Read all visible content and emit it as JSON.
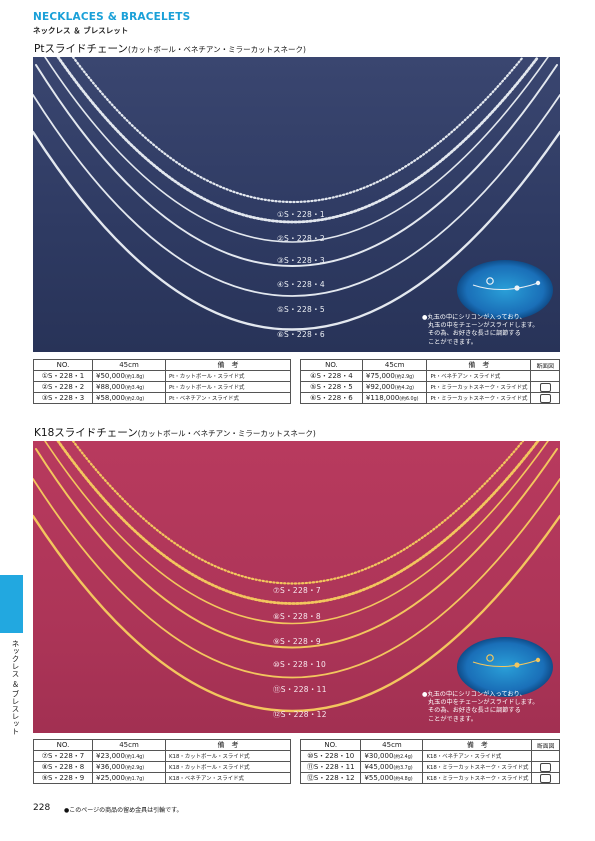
{
  "header": {
    "title": "NECKLACES & BRACELETS",
    "subtitle": "ネックレス ＆ ブレスレット"
  },
  "pt_section": {
    "title": "Ptスライドチェーン",
    "title_note": "(カットボール・ベネチアン・ミラーカットスネーク)",
    "chain_labels": [
      "①S・228・1",
      "②S・228・2",
      "③S・228・3",
      "④S・228・4",
      "⑤S・228・5",
      "⑥S・228・6"
    ],
    "callout": [
      "●丸玉の中にシリコンが入っており、",
      "丸玉の中をチェーンがスライドします。",
      "その為、お好きな長さに調節する",
      "ことができます。"
    ],
    "photo_bg": "#2f3a60",
    "chain_color": "#dfe4ec",
    "table": {
      "headers": {
        "no": "NO.",
        "length": "45cm",
        "note": "備　考",
        "diagram": "断面図"
      },
      "left_rows": [
        {
          "no": "①S・228・1",
          "price": "¥50,000",
          "weight": "(約1.8g)",
          "note": "Pt・カットボール・スライド式"
        },
        {
          "no": "②S・228・2",
          "price": "¥88,000",
          "weight": "(約3.4g)",
          "note": "Pt・カットボール・スライド式"
        },
        {
          "no": "③S・228・3",
          "price": "¥58,000",
          "weight": "(約2.0g)",
          "note": "Pt・ベネチアン・スライド式"
        }
      ],
      "right_rows": [
        {
          "no": "④S・228・4",
          "price": "¥75,000",
          "weight": "(約2.9g)",
          "note": "Pt・ベネチアン・スライド式",
          "diagram": false
        },
        {
          "no": "⑤S・228・5",
          "price": "¥92,000",
          "weight": "(約4.2g)",
          "note": "Pt・ミラーカットスネーク・スライド式",
          "diagram": true
        },
        {
          "no": "⑥S・228・6",
          "price": "¥118,000",
          "weight": "(約6.0g)",
          "note": "Pt・ミラーカットスネーク・スライド式",
          "diagram": true
        }
      ]
    }
  },
  "k18_section": {
    "title": "K18スライドチェーン",
    "title_note": "(カットボール・ベネチアン・ミラーカットスネーク)",
    "chain_labels": [
      "⑦S・228・7",
      "⑧S・228・8",
      "⑨S・228・9",
      "⑩S・228・10",
      "⑪S・228・11",
      "⑫S・228・12"
    ],
    "callout": [
      "●丸玉の中にシリコンが入っており、",
      "丸玉の中をチェーンがスライドします。",
      "その為、お好きな長さに調節する",
      "ことができます。"
    ],
    "photo_bg": "#b0375a",
    "chain_color": "#f2c660",
    "table": {
      "headers": {
        "no": "NO.",
        "length": "45cm",
        "note": "備　考",
        "diagram": "断面図"
      },
      "left_rows": [
        {
          "no": "⑦S・228・7",
          "price": "¥23,000",
          "weight": "(約1.4g)",
          "note": "K18・カットボール・スライド式"
        },
        {
          "no": "⑧S・228・8",
          "price": "¥36,000",
          "weight": "(約2.9g)",
          "note": "K18・カットボール・スライド式"
        },
        {
          "no": "⑨S・228・9",
          "price": "¥25,000",
          "weight": "(約1.7g)",
          "note": "K18・ベネチアン・スライド式"
        }
      ],
      "right_rows": [
        {
          "no": "⑩S・228・10",
          "price": "¥30,000",
          "weight": "(約2.4g)",
          "note": "K18・ベネチアン・スライド式",
          "diagram": false
        },
        {
          "no": "⑪S・228・11",
          "price": "¥45,000",
          "weight": "(約3.7g)",
          "note": "K18・ミラーカットスネーク・スライド式",
          "diagram": true
        },
        {
          "no": "⑫S・228・12",
          "price": "¥55,000",
          "weight": "(約4.8g)",
          "note": "K18・ミラーカットスネーク・スライド式",
          "diagram": true
        }
      ]
    }
  },
  "side_tab_text": "ネックレス ＆ ブレスレット",
  "footer": {
    "page_number": "228",
    "note": "●このページの商品の留め金具は引輪です。"
  }
}
